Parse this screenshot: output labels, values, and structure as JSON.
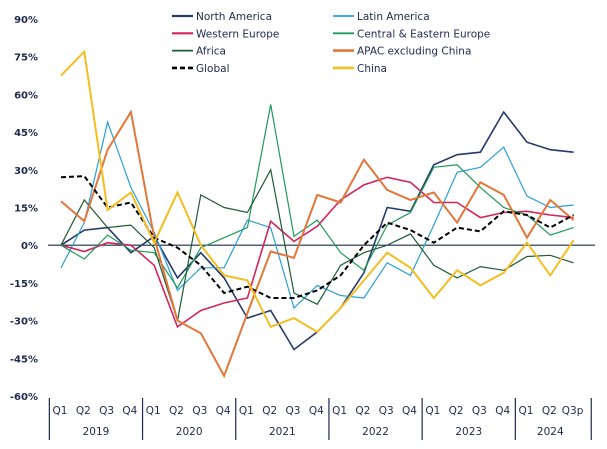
{
  "chart_data": {
    "type": "line",
    "title": "",
    "xlabel": "",
    "ylabel": "",
    "ylim": [
      -60,
      90
    ],
    "yticks": [
      90,
      75,
      60,
      45,
      30,
      15,
      0,
      -15,
      -30,
      -45,
      -60
    ],
    "ytick_labels": [
      "90%",
      "75%",
      "60%",
      "45%",
      "30%",
      "15%",
      "0%",
      "-15%",
      "-30%",
      "-45%",
      "-60%"
    ],
    "grid": false,
    "legend_position": "top",
    "categories": [
      "Q1",
      "Q2",
      "Q3",
      "Q4",
      "Q1",
      "Q2",
      "Q3",
      "Q4",
      "Q1",
      "Q2",
      "Q3",
      "Q4",
      "Q1",
      "Q2",
      "Q3",
      "Q4",
      "Q1",
      "Q2",
      "Q3",
      "Q4",
      "Q1",
      "Q2",
      "Q3p"
    ],
    "years": [
      {
        "label": "2019",
        "quarters": 4
      },
      {
        "label": "2020",
        "quarters": 4
      },
      {
        "label": "2021",
        "quarters": 4
      },
      {
        "label": "2022",
        "quarters": 4
      },
      {
        "label": "2023",
        "quarters": 4
      },
      {
        "label": "2024",
        "quarters": 3
      }
    ],
    "series": [
      {
        "name": "North America",
        "color": "#233a6b",
        "dash": false,
        "width": 1.6,
        "values": [
          0,
          6,
          7,
          -3,
          3.5,
          -13,
          -3,
          -13,
          -29,
          -26,
          -41.5,
          -34.5,
          -25,
          -11,
          15,
          13.5,
          32,
          36,
          37,
          53,
          41,
          38,
          37
        ]
      },
      {
        "name": "Latin America",
        "color": "#2aa0d4",
        "dash": false,
        "width": 1.2,
        "values": [
          -9,
          9,
          49,
          23,
          5,
          -18,
          -9,
          -9,
          10,
          7,
          -25,
          -16,
          -20,
          -21,
          -7,
          -12,
          8,
          29,
          31,
          39,
          19.5,
          15,
          16
        ]
      },
      {
        "name": "Western Europe",
        "color": "#d6245b",
        "dash": false,
        "width": 1.6,
        "values": [
          0,
          -2.5,
          1,
          0,
          -8,
          -32.5,
          -26,
          -23,
          -21,
          9.5,
          1.5,
          7.5,
          18,
          24,
          27,
          25,
          17,
          17,
          11,
          13,
          13.5,
          12,
          11
        ]
      },
      {
        "name": "Central & Eastern Europe",
        "color": "#1f9a5a",
        "dash": false,
        "width": 1.2,
        "values": [
          0,
          -5.5,
          4,
          -2,
          -3,
          -17,
          -1,
          3,
          7,
          56,
          3.5,
          10,
          -3,
          -10,
          8,
          13,
          31,
          32,
          23,
          15,
          12,
          4,
          7
        ]
      },
      {
        "name": "Africa",
        "color": "#1e5b35",
        "dash": false,
        "width": 1.2,
        "values": [
          0,
          18,
          7,
          8,
          -1,
          -30,
          20,
          15,
          13,
          30,
          -19,
          -23.5,
          -8,
          -3,
          0,
          4.5,
          -8,
          -13,
          -8.5,
          -10,
          -4.5,
          -4,
          -7
        ]
      },
      {
        "name": "APAC excluding China",
        "color": "#e2773a",
        "dash": false,
        "width": 2.0,
        "values": [
          17.5,
          9.5,
          38,
          53,
          3,
          -30,
          -35,
          -52,
          -27,
          -2.5,
          -5,
          20,
          17,
          34,
          22,
          18,
          21,
          9,
          25,
          20,
          3,
          18,
          10
        ]
      },
      {
        "name": "Global",
        "color": "#000000",
        "dash": true,
        "width": 2.0,
        "values": [
          27,
          27.5,
          15,
          17,
          3,
          -1,
          -8,
          -19,
          -16.5,
          -21,
          -21,
          -18,
          -12,
          0,
          9,
          6,
          1,
          7,
          5.5,
          13.5,
          12,
          7,
          12
        ]
      },
      {
        "name": "China",
        "color": "#f2be22",
        "dash": false,
        "width": 2.0,
        "values": [
          67.5,
          77,
          14,
          21,
          1,
          21,
          0,
          -12,
          -14,
          -32.5,
          -29,
          -34.5,
          -25,
          -14,
          -3,
          -9,
          -21,
          -10,
          -16,
          -11,
          1,
          -12,
          2
        ]
      }
    ],
    "legend": {
      "left_column": [
        "North America",
        "Western Europe",
        "Africa",
        "Global"
      ],
      "right_column": [
        "Latin America",
        "Central & Eastern Europe",
        "APAC excluding China",
        "China"
      ]
    }
  }
}
